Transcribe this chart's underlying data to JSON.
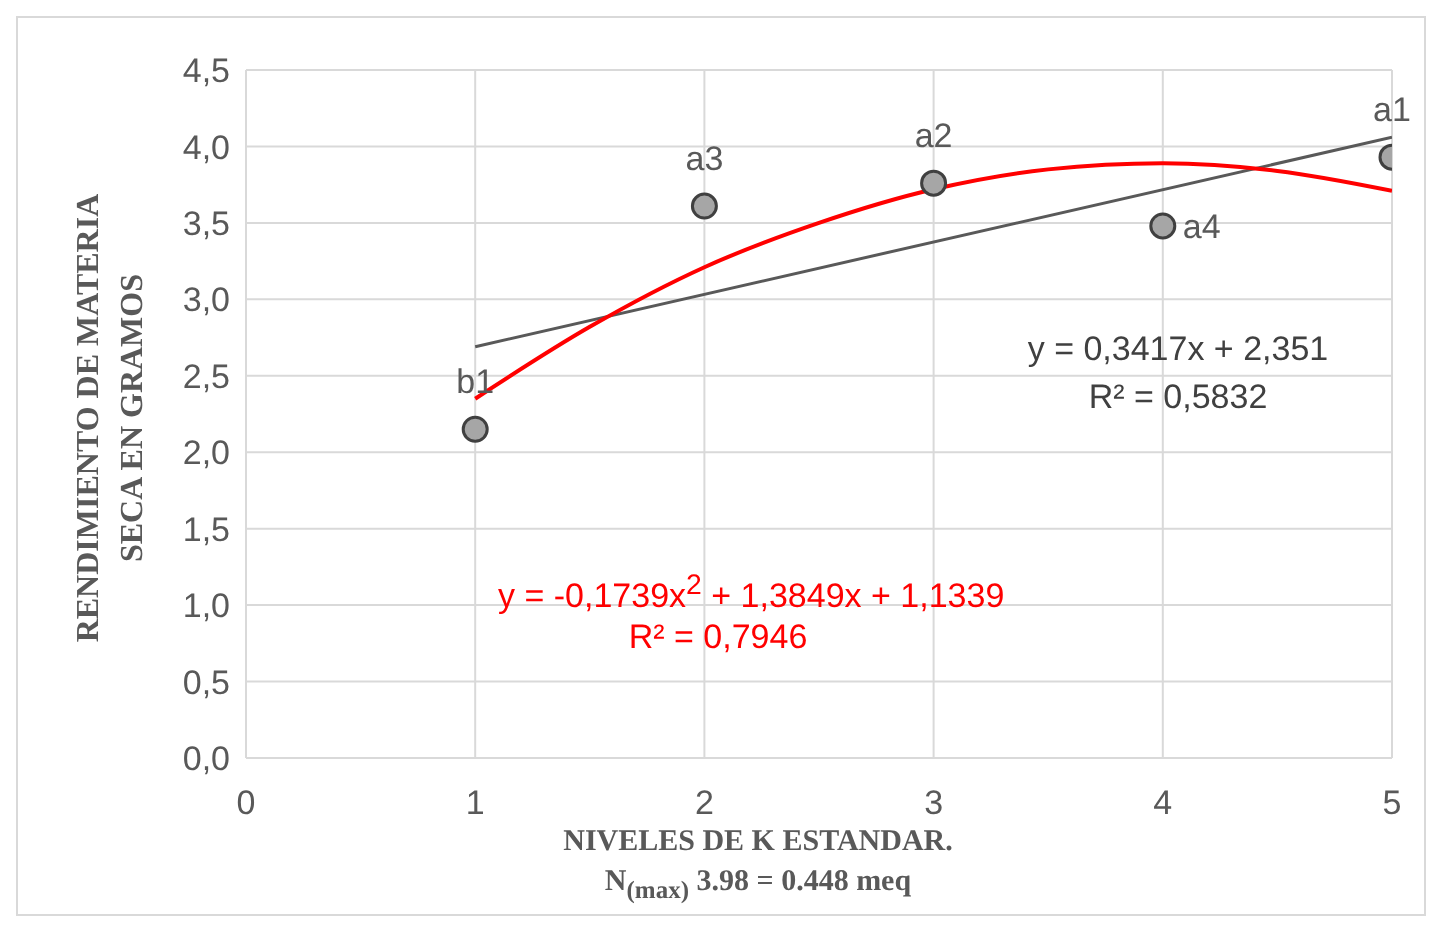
{
  "chart_data": {
    "type": "scatter",
    "xlabel": "NIVELES DE K ESTANDAR.\nN$_{(max)}$ 3.98 = 0.448 meq",
    "ylabel": "RENDIMIENTO DE MATERIA\nSECA EN GRAMOS",
    "xlim": [
      0,
      5
    ],
    "xticks": [
      0,
      1,
      2,
      3,
      4,
      5
    ],
    "ylim": [
      0,
      4.5
    ],
    "yticks": [
      {
        "value": 0,
        "label": "0,0"
      },
      {
        "value": 0.5,
        "label": "0,5"
      },
      {
        "value": 1,
        "label": "1,0"
      },
      {
        "value": 1.5,
        "label": "1,5"
      },
      {
        "value": 2,
        "label": "2,0"
      },
      {
        "value": 2.5,
        "label": "2,5"
      },
      {
        "value": 3,
        "label": "3,0"
      },
      {
        "value": 3.5,
        "label": "3,5"
      },
      {
        "value": 4,
        "label": "4,0"
      },
      {
        "value": 4.5,
        "label": "4,5"
      }
    ],
    "grid": true,
    "series": [
      {
        "marker": "circle",
        "color": "#a6a6a6",
        "x": [
          1,
          2,
          3,
          4,
          5
        ],
        "values": [
          2.15,
          3.61,
          3.76,
          3.48,
          3.93
        ],
        "value_labels": [
          "b1",
          "a3",
          "a2",
          "a4",
          "a1"
        ]
      },
      {
        "type": "line",
        "marker": "none",
        "color": "#595959",
        "x": [
          1,
          5
        ],
        "values": [
          2.69,
          4.06
        ]
      },
      {
        "type": "line",
        "marker": "none",
        "color": "#ff0000",
        "x": [
          1,
          1.5,
          2,
          2.5,
          3,
          3.5,
          4,
          4.5,
          5
        ],
        "values": [
          2.35,
          2.82,
          3.21,
          3.5,
          3.72,
          3.85,
          3.89,
          3.84,
          3.71
        ]
      }
    ],
    "annotations": [
      "y = 0,3417x + 2,351",
      "R² = 0,5832",
      "y = -0,1739x$^{2}$ + 1,3849x + 1,1339",
      "R² = 0,7946"
    ]
  }
}
